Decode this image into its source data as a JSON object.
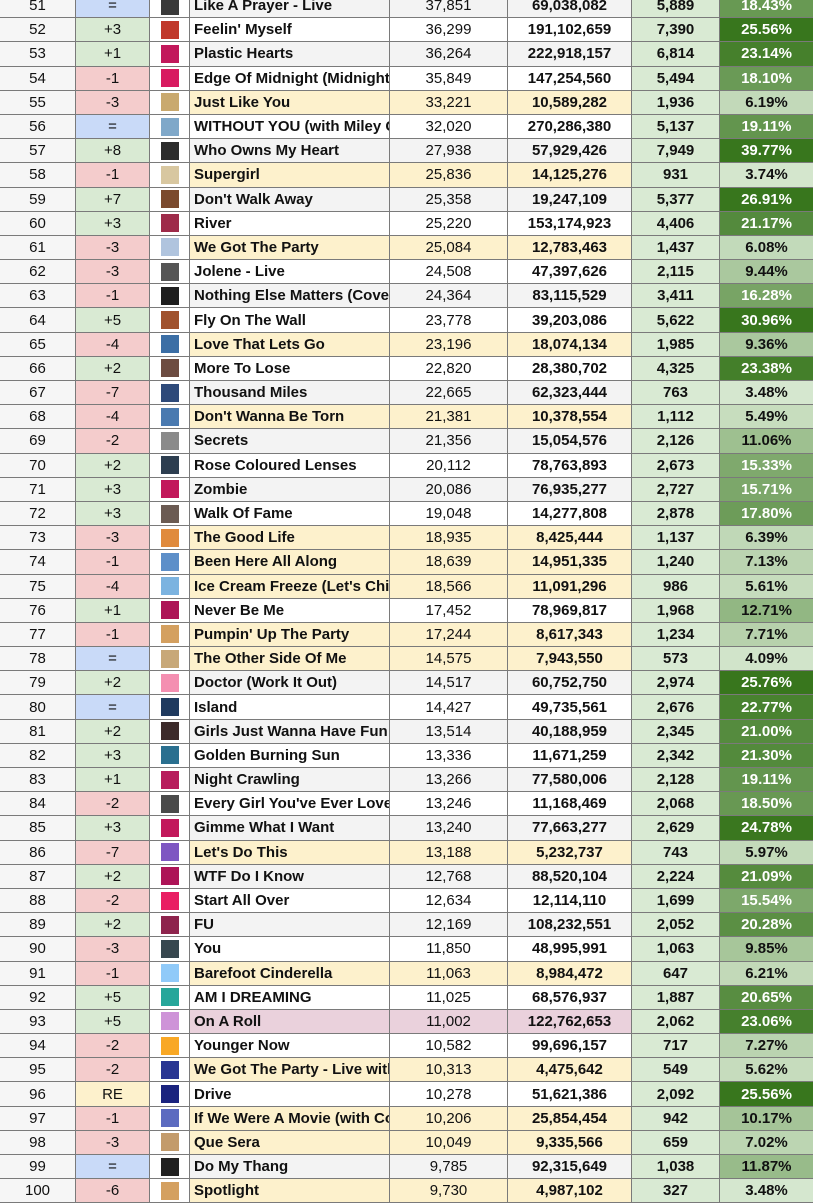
{
  "colors": {
    "up": "#d9ead3",
    "down": "#f4cccc",
    "same": "#c9daf8",
    "re": "#fdf1cc",
    "highlight_yellow": "#fdf1cc",
    "highlight_pink": "#ead1dc",
    "pct_light": "#d9ead3",
    "pct_mid": "#93c47d",
    "pct_dark": "#38761d"
  },
  "rows": [
    {
      "rank": "51",
      "change": "=",
      "title": "Like A Prayer - Live",
      "daily": "37,851",
      "total": "69,038,082",
      "gain": "5,889",
      "pct": "18.43%",
      "hl": "",
      "art": "#3a3a3a"
    },
    {
      "rank": "52",
      "change": "+3",
      "title": "Feelin' Myself",
      "daily": "36,299",
      "total": "191,102,659",
      "gain": "7,390",
      "pct": "25.56%",
      "hl": "",
      "art": "#c0392b"
    },
    {
      "rank": "53",
      "change": "+1",
      "title": "Plastic Hearts",
      "daily": "36,264",
      "total": "222,918,157",
      "gain": "6,814",
      "pct": "23.14%",
      "hl": "",
      "art": "#c2185b"
    },
    {
      "rank": "54",
      "change": "-1",
      "title": "Edge Of Midnight (Midnight",
      "daily": "35,849",
      "total": "147,254,560",
      "gain": "5,494",
      "pct": "18.10%",
      "hl": "",
      "art": "#d81b60"
    },
    {
      "rank": "55",
      "change": "-3",
      "title": "Just Like You",
      "daily": "33,221",
      "total": "10,589,282",
      "gain": "1,936",
      "pct": "6.19%",
      "hl": "y",
      "art": "#c9a96e"
    },
    {
      "rank": "56",
      "change": "=",
      "title": "WITHOUT YOU (with Miley C",
      "daily": "32,020",
      "total": "270,286,380",
      "gain": "5,137",
      "pct": "19.11%",
      "hl": "",
      "art": "#7fa8c9"
    },
    {
      "rank": "57",
      "change": "+8",
      "title": "Who Owns My Heart",
      "daily": "27,938",
      "total": "57,929,426",
      "gain": "7,949",
      "pct": "39.77%",
      "hl": "",
      "art": "#2c2c2c"
    },
    {
      "rank": "58",
      "change": "-1",
      "title": "Supergirl",
      "daily": "25,836",
      "total": "14,125,276",
      "gain": "931",
      "pct": "3.74%",
      "hl": "y",
      "art": "#d8c7a0"
    },
    {
      "rank": "59",
      "change": "+7",
      "title": "Don't Walk Away",
      "daily": "25,358",
      "total": "19,247,109",
      "gain": "5,377",
      "pct": "26.91%",
      "hl": "",
      "art": "#7b4a2e"
    },
    {
      "rank": "60",
      "change": "+3",
      "title": "River",
      "daily": "25,220",
      "total": "153,174,923",
      "gain": "4,406",
      "pct": "21.17%",
      "hl": "",
      "art": "#9e2b4a"
    },
    {
      "rank": "61",
      "change": "-3",
      "title": "We Got The Party",
      "daily": "25,084",
      "total": "12,783,463",
      "gain": "1,437",
      "pct": "6.08%",
      "hl": "y",
      "art": "#b0c4de"
    },
    {
      "rank": "62",
      "change": "-3",
      "title": "Jolene - Live",
      "daily": "24,508",
      "total": "47,397,626",
      "gain": "2,115",
      "pct": "9.44%",
      "hl": "",
      "art": "#555555"
    },
    {
      "rank": "63",
      "change": "-1",
      "title": "Nothing Else Matters (Cover",
      "daily": "24,364",
      "total": "83,115,529",
      "gain": "3,411",
      "pct": "16.28%",
      "hl": "",
      "art": "#1e1e1e"
    },
    {
      "rank": "64",
      "change": "+5",
      "title": "Fly On The Wall",
      "daily": "23,778",
      "total": "39,203,086",
      "gain": "5,622",
      "pct": "30.96%",
      "hl": "",
      "art": "#a0522d"
    },
    {
      "rank": "65",
      "change": "-4",
      "title": "Love That Lets Go",
      "daily": "23,196",
      "total": "18,074,134",
      "gain": "1,985",
      "pct": "9.36%",
      "hl": "y",
      "art": "#3b6ea5"
    },
    {
      "rank": "66",
      "change": "+2",
      "title": "More To Lose",
      "daily": "22,820",
      "total": "28,380,702",
      "gain": "4,325",
      "pct": "23.38%",
      "hl": "",
      "art": "#6d4c41"
    },
    {
      "rank": "67",
      "change": "-7",
      "title": "Thousand Miles",
      "daily": "22,665",
      "total": "62,323,444",
      "gain": "763",
      "pct": "3.48%",
      "hl": "",
      "art": "#2e4a7a"
    },
    {
      "rank": "68",
      "change": "-4",
      "title": "Don't Wanna Be Torn",
      "daily": "21,381",
      "total": "10,378,554",
      "gain": "1,112",
      "pct": "5.49%",
      "hl": "y",
      "art": "#4a7ab0"
    },
    {
      "rank": "69",
      "change": "-2",
      "title": "Secrets",
      "daily": "21,356",
      "total": "15,054,576",
      "gain": "2,126",
      "pct": "11.06%",
      "hl": "",
      "art": "#8a8a8a"
    },
    {
      "rank": "70",
      "change": "+2",
      "title": "Rose Coloured Lenses",
      "daily": "20,112",
      "total": "78,763,893",
      "gain": "2,673",
      "pct": "15.33%",
      "hl": "",
      "art": "#2d3e50"
    },
    {
      "rank": "71",
      "change": "+3",
      "title": "Zombie",
      "daily": "20,086",
      "total": "76,935,277",
      "gain": "2,727",
      "pct": "15.71%",
      "hl": "",
      "art": "#c2185b"
    },
    {
      "rank": "72",
      "change": "+3",
      "title": "Walk Of Fame",
      "daily": "19,048",
      "total": "14,277,808",
      "gain": "2,878",
      "pct": "17.80%",
      "hl": "",
      "art": "#6b5b53"
    },
    {
      "rank": "73",
      "change": "-3",
      "title": "The Good Life",
      "daily": "18,935",
      "total": "8,425,444",
      "gain": "1,137",
      "pct": "6.39%",
      "hl": "y",
      "art": "#e08a3c"
    },
    {
      "rank": "74",
      "change": "-1",
      "title": "Been Here All Along",
      "daily": "18,639",
      "total": "14,951,335",
      "gain": "1,240",
      "pct": "7.13%",
      "hl": "y",
      "art": "#5d8fc9"
    },
    {
      "rank": "75",
      "change": "-4",
      "title": "Ice Cream Freeze (Let's Chil",
      "daily": "18,566",
      "total": "11,091,296",
      "gain": "986",
      "pct": "5.61%",
      "hl": "y",
      "art": "#7bb3e0"
    },
    {
      "rank": "76",
      "change": "+1",
      "title": "Never Be Me",
      "daily": "17,452",
      "total": "78,969,817",
      "gain": "1,968",
      "pct": "12.71%",
      "hl": "",
      "art": "#ad1457"
    },
    {
      "rank": "77",
      "change": "-1",
      "title": "Pumpin' Up The Party",
      "daily": "17,244",
      "total": "8,617,343",
      "gain": "1,234",
      "pct": "7.71%",
      "hl": "y",
      "art": "#d4a060"
    },
    {
      "rank": "78",
      "change": "=",
      "title": "The Other Side Of Me",
      "daily": "14,575",
      "total": "7,943,550",
      "gain": "573",
      "pct": "4.09%",
      "hl": "y",
      "art": "#c8a878"
    },
    {
      "rank": "79",
      "change": "+2",
      "title": "Doctor (Work It Out)",
      "daily": "14,517",
      "total": "60,752,750",
      "gain": "2,974",
      "pct": "25.76%",
      "hl": "",
      "art": "#f48fb1"
    },
    {
      "rank": "80",
      "change": "=",
      "title": "Island",
      "daily": "14,427",
      "total": "49,735,561",
      "gain": "2,676",
      "pct": "22.77%",
      "hl": "",
      "art": "#1f3a5f"
    },
    {
      "rank": "81",
      "change": "+2",
      "title": "Girls Just Wanna Have Fun",
      "daily": "13,514",
      "total": "40,188,959",
      "gain": "2,345",
      "pct": "21.00%",
      "hl": "",
      "art": "#3d2b2b"
    },
    {
      "rank": "82",
      "change": "+3",
      "title": "Golden Burning Sun",
      "daily": "13,336",
      "total": "11,671,259",
      "gain": "2,342",
      "pct": "21.30%",
      "hl": "",
      "art": "#2a6f8f"
    },
    {
      "rank": "83",
      "change": "+1",
      "title": "Night Crawling",
      "daily": "13,266",
      "total": "77,580,006",
      "gain": "2,128",
      "pct": "19.11%",
      "hl": "",
      "art": "#b71c5c"
    },
    {
      "rank": "84",
      "change": "-2",
      "title": "Every Girl You've Ever Love",
      "daily": "13,246",
      "total": "11,168,469",
      "gain": "2,068",
      "pct": "18.50%",
      "hl": "",
      "art": "#4a4a4a"
    },
    {
      "rank": "85",
      "change": "+3",
      "title": "Gimme What I Want",
      "daily": "13,240",
      "total": "77,663,277",
      "gain": "2,629",
      "pct": "24.78%",
      "hl": "",
      "art": "#c2185b"
    },
    {
      "rank": "86",
      "change": "-7",
      "title": "Let's Do This",
      "daily": "13,188",
      "total": "5,232,737",
      "gain": "743",
      "pct": "5.97%",
      "hl": "y",
      "art": "#7e57c2"
    },
    {
      "rank": "87",
      "change": "+2",
      "title": "WTF Do I Know",
      "daily": "12,768",
      "total": "88,520,104",
      "gain": "2,224",
      "pct": "21.09%",
      "hl": "",
      "art": "#ad1457"
    },
    {
      "rank": "88",
      "change": "-2",
      "title": "Start All Over",
      "daily": "12,634",
      "total": "12,114,110",
      "gain": "1,699",
      "pct": "15.54%",
      "hl": "",
      "art": "#e91e63"
    },
    {
      "rank": "89",
      "change": "+2",
      "title": "FU",
      "daily": "12,169",
      "total": "108,232,551",
      "gain": "2,052",
      "pct": "20.28%",
      "hl": "",
      "art": "#8e244d"
    },
    {
      "rank": "90",
      "change": "-3",
      "title": "You",
      "daily": "11,850",
      "total": "48,995,991",
      "gain": "1,063",
      "pct": "9.85%",
      "hl": "",
      "art": "#37474f"
    },
    {
      "rank": "91",
      "change": "-1",
      "title": "Barefoot Cinderella",
      "daily": "11,063",
      "total": "8,984,472",
      "gain": "647",
      "pct": "6.21%",
      "hl": "y",
      "art": "#90caf9"
    },
    {
      "rank": "92",
      "change": "+5",
      "title": "AM I DREAMING",
      "daily": "11,025",
      "total": "68,576,937",
      "gain": "1,887",
      "pct": "20.65%",
      "hl": "",
      "art": "#26a69a"
    },
    {
      "rank": "93",
      "change": "+5",
      "title": "On A Roll",
      "daily": "11,002",
      "total": "122,762,653",
      "gain": "2,062",
      "pct": "23.06%",
      "hl": "p",
      "art": "#ce93d8"
    },
    {
      "rank": "94",
      "change": "-2",
      "title": "Younger Now",
      "daily": "10,582",
      "total": "99,696,157",
      "gain": "717",
      "pct": "7.27%",
      "hl": "",
      "art": "#f9a825"
    },
    {
      "rank": "95",
      "change": "-2",
      "title": "We Got The Party - Live with",
      "daily": "10,313",
      "total": "4,475,642",
      "gain": "549",
      "pct": "5.62%",
      "hl": "y",
      "art": "#283593"
    },
    {
      "rank": "96",
      "change": "RE",
      "title": "Drive",
      "daily": "10,278",
      "total": "51,621,386",
      "gain": "2,092",
      "pct": "25.56%",
      "hl": "",
      "art": "#1a237e"
    },
    {
      "rank": "97",
      "change": "-1",
      "title": "If We Were A Movie (with Co",
      "daily": "10,206",
      "total": "25,854,454",
      "gain": "942",
      "pct": "10.17%",
      "hl": "y",
      "art": "#5c6bc0"
    },
    {
      "rank": "98",
      "change": "-3",
      "title": "Que Sera",
      "daily": "10,049",
      "total": "9,335,566",
      "gain": "659",
      "pct": "7.02%",
      "hl": "y",
      "art": "#c39b6b"
    },
    {
      "rank": "99",
      "change": "=",
      "title": "Do My Thang",
      "daily": "9,785",
      "total": "92,315,649",
      "gain": "1,038",
      "pct": "11.87%",
      "hl": "",
      "art": "#212121"
    },
    {
      "rank": "100",
      "change": "-6",
      "title": "Spotlight",
      "daily": "9,730",
      "total": "4,987,102",
      "gain": "327",
      "pct": "3.48%",
      "hl": "y",
      "art": "#d4a060"
    }
  ]
}
